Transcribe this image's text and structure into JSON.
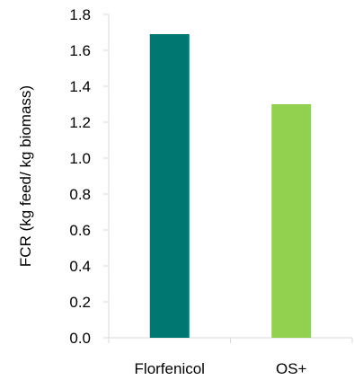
{
  "chart_data": {
    "type": "bar",
    "title": "",
    "xlabel": "",
    "ylabel": "FCR (kg feed/ kg biomass)",
    "categories": [
      "Florfenicol",
      "OS+"
    ],
    "series": [
      {
        "values": [
          1.69,
          1.3
        ]
      }
    ],
    "colors": [
      "#007872",
      "#92d050"
    ],
    "ylim": [
      0,
      1.8
    ],
    "yticks": [
      "0.0",
      "0.2",
      "0.4",
      "0.6",
      "0.8",
      "1.0",
      "1.2",
      "1.4",
      "1.6",
      "1.8"
    ],
    "grid": false,
    "legend": "none"
  }
}
